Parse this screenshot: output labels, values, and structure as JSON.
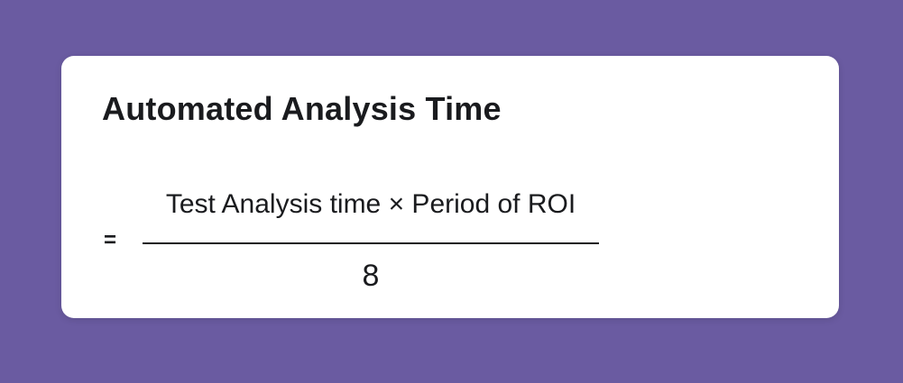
{
  "colors": {
    "background": "#6a5ba1",
    "card": "#ffffff",
    "text": "#1a1b1e"
  },
  "card": {
    "title": "Automated Analysis Time",
    "formula": {
      "equals_sign": "=",
      "numerator": "Test Analysis time × Period of ROI",
      "denominator": "8"
    }
  }
}
